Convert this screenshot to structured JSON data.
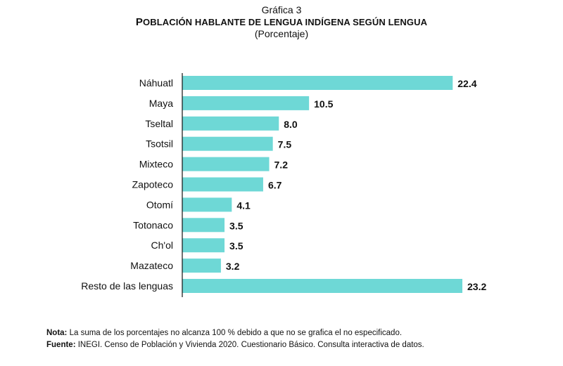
{
  "header": {
    "kicker": "Gráfica 3",
    "title_first": "P",
    "title_rest": "OBLACIÓN HABLANTE DE LENGUA INDÍGENA SEGÚN LENGUA",
    "subtitle": "(Porcentaje)"
  },
  "chart_data": {
    "type": "bar",
    "orientation": "horizontal",
    "title": "Población hablante de lengua indígena según lengua",
    "subtitle": "(Porcentaje)",
    "categories": [
      "Náhuatl",
      "Maya",
      "Tseltal",
      "Tsotsil",
      "Mixteco",
      "Zapoteco",
      "Otomí",
      "Totonaco",
      "Ch'ol",
      "Mazateco",
      "Resto de las lenguas"
    ],
    "values": [
      22.4,
      10.5,
      8.0,
      7.5,
      7.2,
      6.7,
      4.1,
      3.5,
      3.5,
      3.2,
      23.2
    ],
    "value_labels": [
      "22.4",
      "10.5",
      "8.0",
      "7.5",
      "7.2",
      "6.7",
      "4.1",
      "3.5",
      "3.5",
      "3.2",
      "23.2"
    ],
    "xlim": [
      0,
      23.2
    ],
    "grid": false,
    "bar_color": "#6ed8d6"
  },
  "notes": {
    "nota_label": "Nota:",
    "nota_text": " La suma de los porcentajes no alcanza 100 % debido a que no se grafica el no especificado.",
    "fuente_label": "Fuente:",
    "fuente_text": " INEGI. Censo de Población y Vivienda 2020. Cuestionario Básico. Consulta interactiva de datos."
  }
}
